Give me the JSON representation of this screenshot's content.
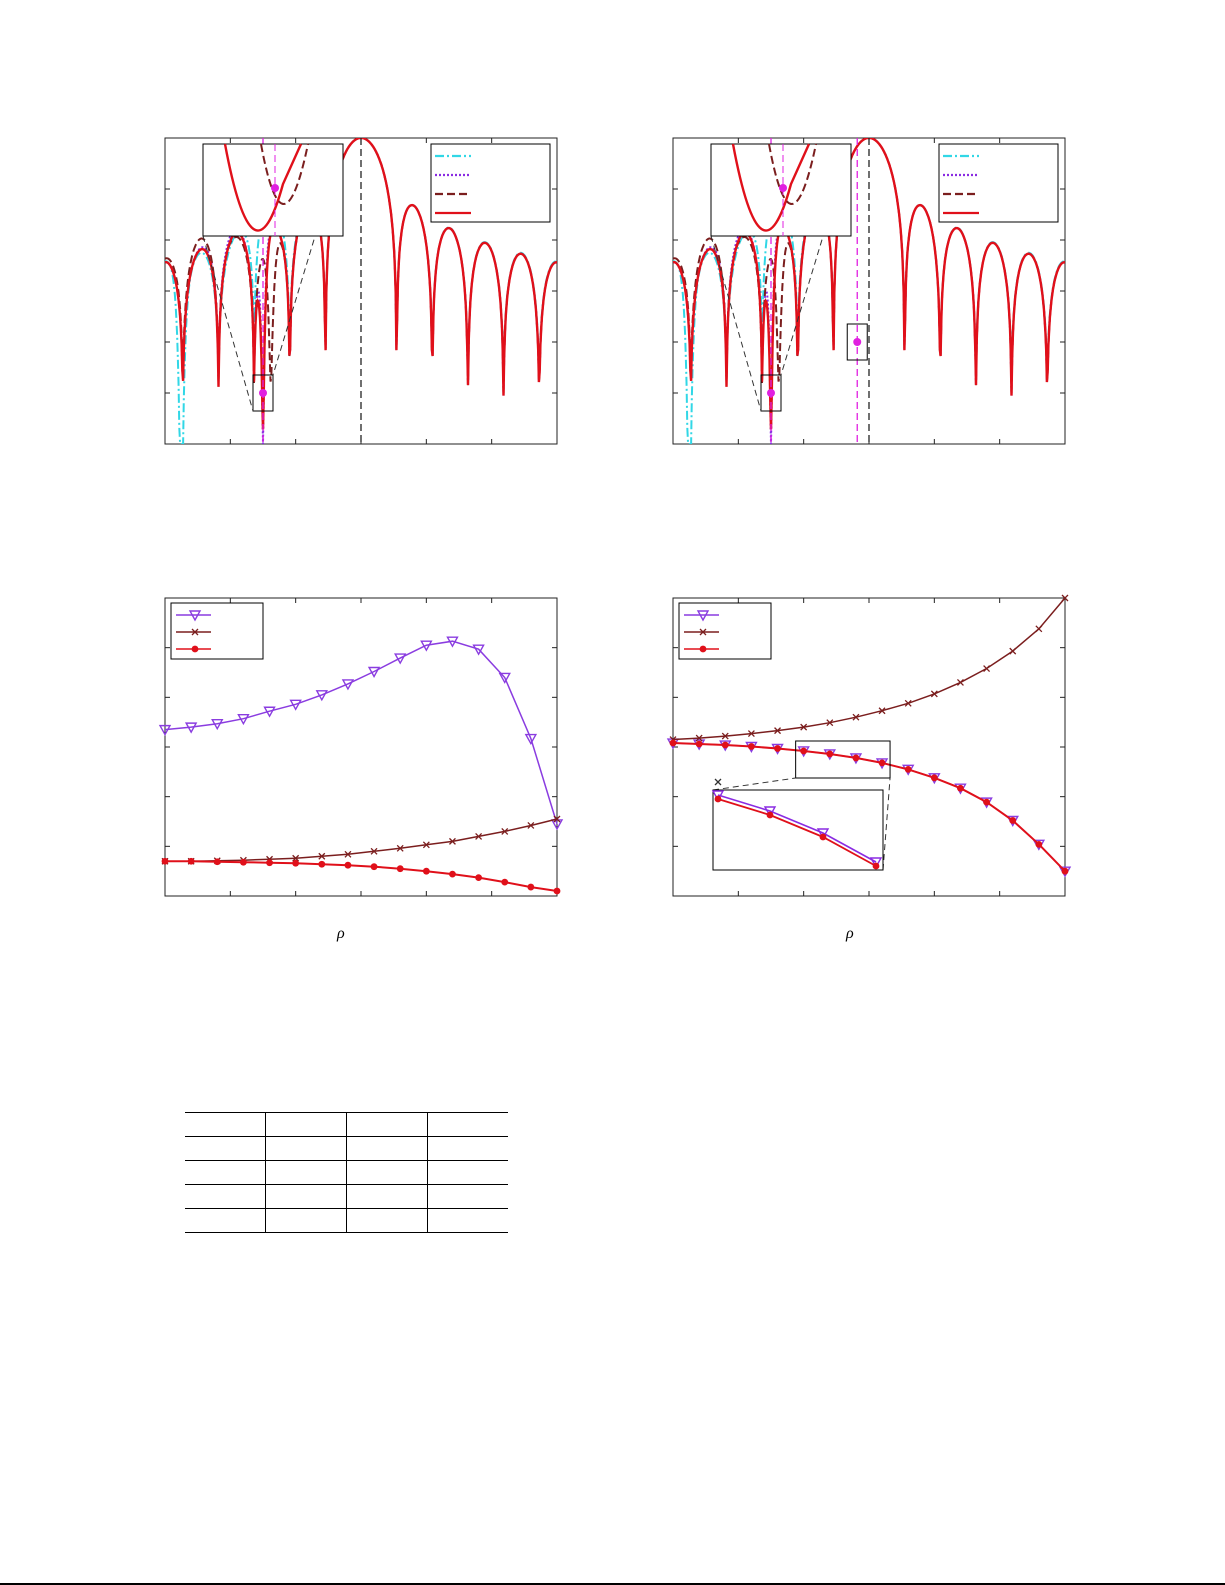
{
  "chart_data": [
    {
      "type": "line",
      "title": "",
      "xlabel": "",
      "ylabel": "",
      "xlim": [
        -0.5,
        0.5
      ],
      "ylim": [
        -60,
        0
      ],
      "grid": false,
      "legend_placement": "top-right",
      "legend_entries": 4,
      "series": [
        {
          "id": "baseline",
          "style": "dash-dot",
          "color": "#31d7e6"
        },
        {
          "id": "method-b",
          "style": "dotted",
          "color": "#8a2be2"
        },
        {
          "id": "method-c",
          "style": "dashed",
          "color": "#7b1e1e"
        },
        {
          "id": "method-d",
          "style": "solid",
          "color": "#e0101a"
        }
      ],
      "vertical_markers": [
        {
          "x": -0.25,
          "style": "dashed",
          "color": "#e020e0"
        },
        {
          "x": 0.0,
          "style": "dashed",
          "color": "#222222"
        }
      ],
      "highlighted_point": {
        "x": -0.25,
        "y": -50
      },
      "note": "beampattern-style curves; numeric ticks not printed in image"
    },
    {
      "type": "line",
      "title": "",
      "xlabel": "",
      "ylabel": "",
      "xlim": [
        -0.5,
        0.5
      ],
      "ylim": [
        -60,
        0
      ],
      "grid": false,
      "legend_placement": "top-right",
      "legend_entries": 4,
      "series": [
        {
          "id": "baseline",
          "style": "dash-dot",
          "color": "#31d7e6"
        },
        {
          "id": "method-b",
          "style": "dotted",
          "color": "#8a2be2"
        },
        {
          "id": "method-c",
          "style": "dashed",
          "color": "#7b1e1e"
        },
        {
          "id": "method-d",
          "style": "solid",
          "color": "#e0101a"
        }
      ],
      "vertical_markers": [
        {
          "x": -0.25,
          "style": "dashed",
          "color": "#e020e0"
        },
        {
          "x": -0.03,
          "style": "dashed",
          "color": "#e020e0"
        },
        {
          "x": 0.0,
          "style": "dashed",
          "color": "#222222"
        }
      ],
      "highlighted_points": [
        {
          "x": -0.25,
          "y": -50
        },
        {
          "x": -0.03,
          "y": -40
        }
      ],
      "note": "beampattern-style curves; numeric ticks not printed in image"
    },
    {
      "type": "line",
      "title": "",
      "xlabel": "ρ",
      "ylabel": "",
      "x": [
        0,
        0.0667,
        0.1333,
        0.2,
        0.2667,
        0.3333,
        0.4,
        0.4667,
        0.5333,
        0.6,
        0.6667,
        0.7333,
        0.8,
        0.8667,
        0.9333,
        1.0
      ],
      "xlim": [
        0,
        1
      ],
      "ylim": [
        0,
        6
      ],
      "grid": false,
      "legend_placement": "top-left",
      "series": [
        {
          "id": "triangle",
          "marker": "triangle-down",
          "color": "#8a3ce0",
          "values": [
            3.35,
            3.4,
            3.47,
            3.57,
            3.72,
            3.86,
            4.05,
            4.27,
            4.52,
            4.79,
            5.05,
            5.13,
            4.97,
            4.4,
            3.17,
            1.45
          ]
        },
        {
          "id": "cross",
          "marker": "x",
          "color": "#7b1e1e",
          "values": [
            0.7,
            0.7,
            0.71,
            0.72,
            0.74,
            0.76,
            0.8,
            0.84,
            0.9,
            0.96,
            1.03,
            1.1,
            1.2,
            1.3,
            1.42,
            1.55
          ]
        },
        {
          "id": "dot",
          "marker": "circle",
          "color": "#e0101a",
          "values": [
            0.7,
            0.7,
            0.69,
            0.68,
            0.67,
            0.66,
            0.64,
            0.62,
            0.59,
            0.55,
            0.5,
            0.44,
            0.37,
            0.28,
            0.18,
            0.1
          ]
        }
      ]
    },
    {
      "type": "line",
      "title": "",
      "xlabel": "ρ",
      "ylabel": "",
      "x": [
        0,
        0.0667,
        0.1333,
        0.2,
        0.2667,
        0.3333,
        0.4,
        0.4667,
        0.5333,
        0.6,
        0.6667,
        0.7333,
        0.8,
        0.8667,
        0.9333,
        1.0
      ],
      "xlim": [
        0,
        1
      ],
      "ylim": [
        0,
        6
      ],
      "grid": false,
      "legend_placement": "top-left",
      "series": [
        {
          "id": "triangle",
          "marker": "triangle-down",
          "color": "#8a3ce0",
          "values": [
            3.08,
            3.06,
            3.04,
            3.01,
            2.97,
            2.92,
            2.86,
            2.78,
            2.68,
            2.55,
            2.38,
            2.17,
            1.89,
            1.52,
            1.04,
            0.5
          ]
        },
        {
          "id": "cross",
          "marker": "x",
          "color": "#7b1e1e",
          "values": [
            3.15,
            3.18,
            3.22,
            3.27,
            3.33,
            3.4,
            3.49,
            3.6,
            3.73,
            3.88,
            4.07,
            4.3,
            4.58,
            4.93,
            5.38,
            6.0
          ]
        },
        {
          "id": "dot",
          "marker": "circle",
          "color": "#e0101a",
          "values": [
            3.08,
            3.06,
            3.04,
            3.01,
            2.97,
            2.92,
            2.86,
            2.78,
            2.68,
            2.55,
            2.38,
            2.17,
            1.89,
            1.52,
            1.04,
            0.5
          ]
        }
      ],
      "inset": {
        "x_range": [
          0.3333,
          0.5333
        ]
      }
    }
  ],
  "figure_labels": {
    "rho_left": "ρ",
    "rho_right": "ρ"
  },
  "table": {
    "rows": 5,
    "cols": 4,
    "cells": [
      [
        "",
        "",
        "",
        ""
      ],
      [
        "",
        "",
        "",
        ""
      ],
      [
        "",
        "",
        "",
        ""
      ],
      [
        "",
        "",
        "",
        ""
      ],
      [
        "",
        "",
        "",
        ""
      ]
    ]
  },
  "colors": {
    "cyan": "#31d7e6",
    "purple": "#8a2be2",
    "brown": "#7b1e1e",
    "red": "#e0101a",
    "magenta": "#e020e0"
  }
}
